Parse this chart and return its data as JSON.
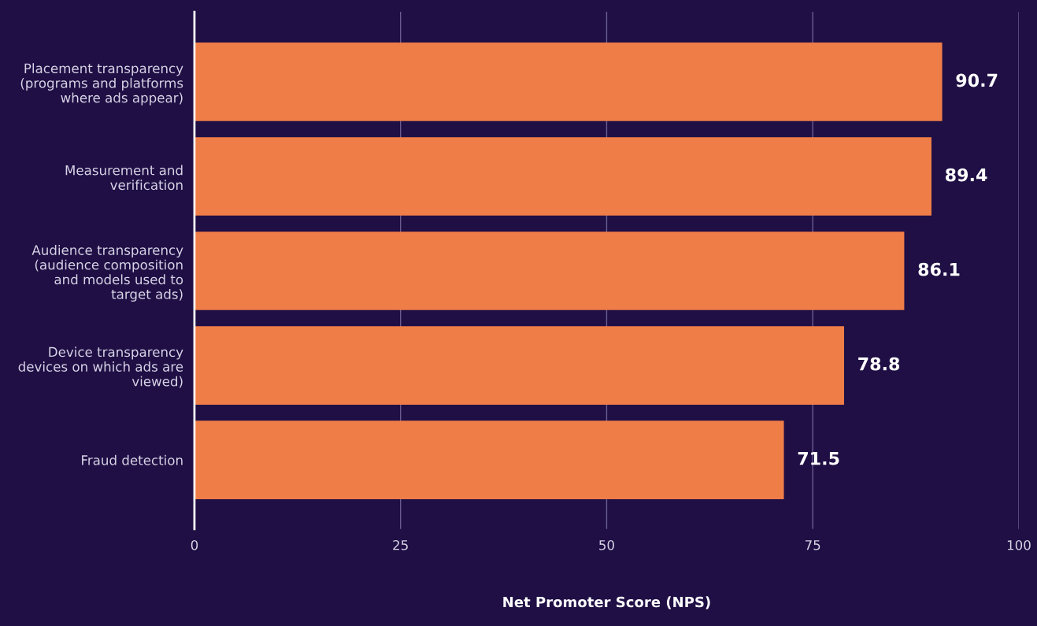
{
  "chart_data": {
    "type": "bar",
    "orientation": "horizontal",
    "xlabel": "Net Promoter Score (NPS)",
    "categories": [
      "Placement transparency\n(programs and platforms\nwhere ads appear)",
      "Measurement and\nverification",
      "Audience transparency\n(audience composition\nand models used to\ntarget ads)",
      "Device transparency\ndevices on which ads are\nviewed)",
      "Fraud detection"
    ],
    "values": [
      90.7,
      89.4,
      86.1,
      78.8,
      71.5
    ],
    "color": "#ef7d48",
    "xlim": [
      0,
      100
    ],
    "xticks": [
      0,
      25,
      50,
      75,
      100
    ],
    "grid": "x",
    "data_labels": true
  }
}
